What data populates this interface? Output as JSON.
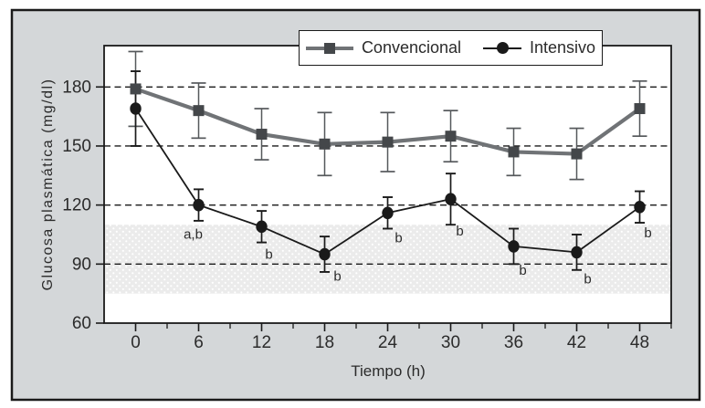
{
  "figure": {
    "background_color": "#d4d7d9",
    "plot_background": "#ffffff",
    "border_color": "#1a1a1a"
  },
  "legend": {
    "position": "top-center",
    "items": [
      {
        "label": "Convencional",
        "marker": "square",
        "marker_color": "#44474a",
        "line_color": "#707376"
      },
      {
        "label": "Intensivo",
        "marker": "circle",
        "marker_color": "#1a1a1a",
        "line_color": "#1a1a1a"
      }
    ]
  },
  "colors": {
    "background": "#d4d7d9",
    "band_fill": "#ebebeb",
    "band_dot": "#ffffff",
    "grid": "#1a1a1a",
    "axis": "#1a1a1a",
    "text": "#2b2b2b",
    "conventional_line": "#707376",
    "conventional_marker": "#44474a",
    "conventional_error": "#55585b",
    "intensive": "#1a1a1a"
  },
  "chart_data": {
    "type": "line",
    "title": "",
    "xlabel": "Tiempo (h)",
    "ylabel": "Glucosa plasmática (mg/dl)",
    "x": [
      0,
      6,
      12,
      18,
      24,
      30,
      36,
      42,
      48
    ],
    "xticks": [
      0,
      6,
      12,
      18,
      24,
      30,
      36,
      42,
      48
    ],
    "xticks_minor": [
      3,
      9,
      15,
      21,
      27,
      33,
      39,
      45,
      51
    ],
    "yticks": [
      60,
      90,
      120,
      150,
      180
    ],
    "xlim": [
      -3,
      51
    ],
    "ylim": [
      60,
      201
    ],
    "grid_y_dashed": [
      90,
      120,
      150,
      180
    ],
    "reference_band": {
      "from": 75,
      "to": 110
    },
    "legend_position": "top-center",
    "series": [
      {
        "name": "Convencional",
        "marker": "square",
        "values": [
          179,
          168,
          156,
          151,
          152,
          155,
          147,
          146,
          169
        ],
        "errors": [
          19,
          14,
          13,
          16,
          15,
          13,
          12,
          13,
          14
        ]
      },
      {
        "name": "Intensivo",
        "marker": "circle",
        "values": [
          169,
          120,
          109,
          95,
          116,
          123,
          99,
          96,
          119
        ],
        "errors": [
          19,
          8,
          8,
          9,
          8,
          13,
          9,
          9,
          8
        ],
        "annotations": [
          {
            "x": 6,
            "text": "a,b",
            "dx": -6,
            "dy": 37
          },
          {
            "x": 12,
            "text": "b",
            "dx": 8,
            "dy": 35
          },
          {
            "x": 18,
            "text": "b",
            "dx": 14,
            "dy": 29
          },
          {
            "x": 24,
            "text": "b",
            "dx": 12,
            "dy": 32
          },
          {
            "x": 30,
            "text": "b",
            "dx": 10,
            "dy": 40
          },
          {
            "x": 36,
            "text": "b",
            "dx": 10,
            "dy": 31
          },
          {
            "x": 42,
            "text": "b",
            "dx": 12,
            "dy": 34
          },
          {
            "x": 48,
            "text": "b",
            "dx": 9,
            "dy": 33
          }
        ]
      }
    ]
  }
}
